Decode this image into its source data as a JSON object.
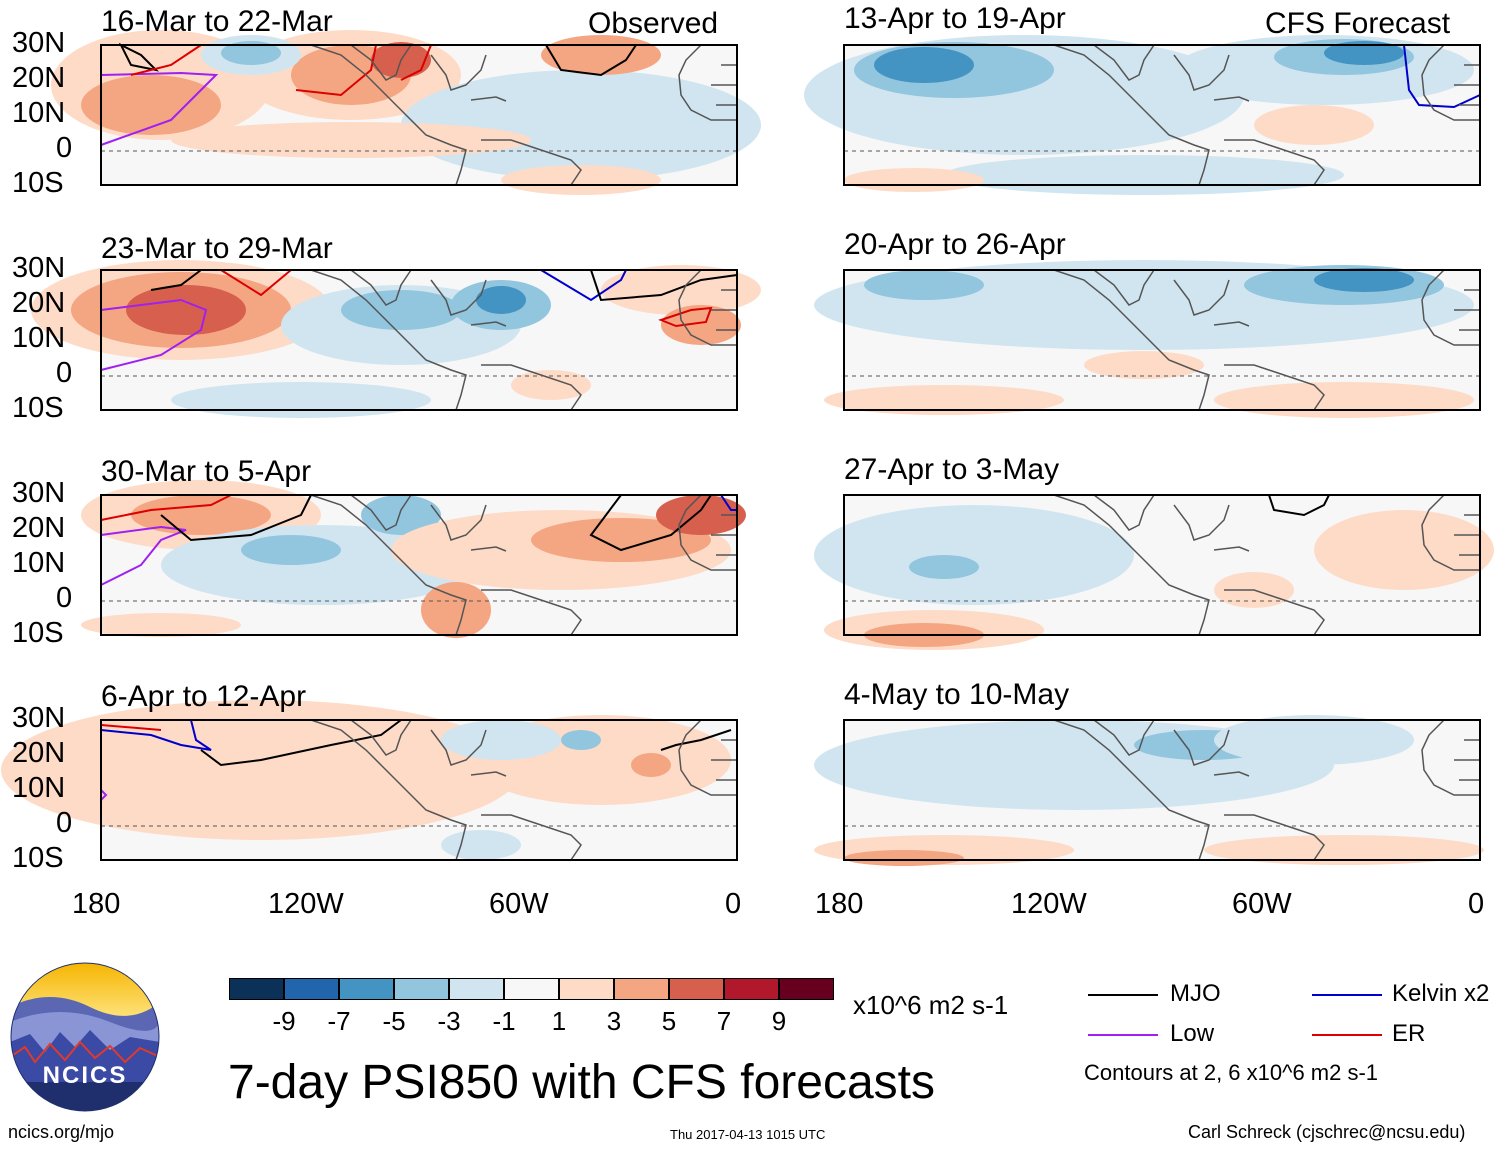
{
  "title": "7-day PSI850 with CFS forecasts",
  "logo": {
    "text": "NCICS",
    "url": "ncics.org/mjo"
  },
  "timestamp": "Thu 2017-04-13 1015 UTC",
  "author": "Carl Schreck (cjschrec@ncsu.edu)",
  "columns": {
    "left": "Observed",
    "right": "CFS Forecast"
  },
  "lat_labels": [
    "30N",
    "20N",
    "10N",
    "0",
    "10S"
  ],
  "lon_labels": [
    "180",
    "120W",
    "60W",
    "0"
  ],
  "panels": {
    "left": [
      {
        "period": "16-Mar to 22-Mar"
      },
      {
        "period": "23-Mar to 29-Mar"
      },
      {
        "period": "30-Mar to 5-Apr"
      },
      {
        "period": "6-Apr to 12-Apr"
      }
    ],
    "right": [
      {
        "period": "13-Apr to 19-Apr"
      },
      {
        "period": "20-Apr to 26-Apr"
      },
      {
        "period": "27-Apr to 3-May"
      },
      {
        "period": "4-May to 10-May"
      }
    ]
  },
  "colorbar": {
    "units": "x10^6 m2 s-1",
    "labels": [
      "-9",
      "-7",
      "-5",
      "-3",
      "-1",
      "1",
      "3",
      "5",
      "7",
      "9"
    ],
    "colors": [
      "#0b3158",
      "#2166ac",
      "#4393c3",
      "#92c5de",
      "#d1e5f0",
      "#f7f7f7",
      "#fddbc7",
      "#f4a582",
      "#d6604d",
      "#b2182b",
      "#67001f"
    ]
  },
  "legend": {
    "items": [
      {
        "label": "MJO",
        "color": "#000000"
      },
      {
        "label": "Kelvin x2",
        "color": "#0000cc"
      },
      {
        "label": "Low",
        "color": "#a020f0"
      },
      {
        "label": "ER",
        "color": "#dd0000"
      }
    ],
    "note": "Contours at 2, 6 x10^6 m2 s-1"
  }
}
